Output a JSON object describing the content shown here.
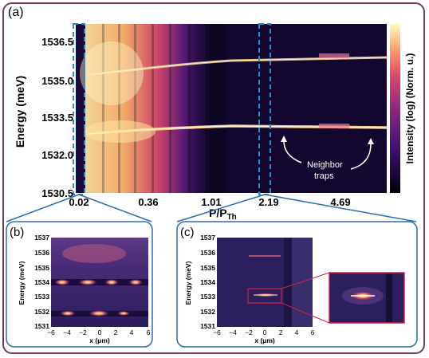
{
  "figure": {
    "panel_a": {
      "label": "(a)",
      "ylabel": "Energy (meV)",
      "xlabel_main": "P/P",
      "xlabel_sub": "Th",
      "yticks": [
        "1536.5",
        "1535.0",
        "1533.5",
        "1532.0",
        "1530.5"
      ],
      "xticks": [
        "0.02",
        "0.36",
        "1.01",
        "2.19",
        "4.69"
      ],
      "colorbar_label": "Intensity (log) (Norm. u.)",
      "annotation_lines": [
        "Neighbor",
        "traps"
      ]
    },
    "panel_b": {
      "label": "(b)",
      "ylabel": "Energy (meV)",
      "xlabel": "x (μm)",
      "yticks": [
        "1537",
        "1536",
        "1535",
        "1534",
        "1533",
        "1532",
        "1531"
      ],
      "xticks": [
        "−6",
        "−4",
        "−2",
        "0",
        "2",
        "4",
        "6"
      ]
    },
    "panel_c": {
      "label": "(c)",
      "ylabel": "Energy (meV)",
      "xlabel": "x (μm)",
      "yticks": [
        "1537",
        "1536",
        "1535",
        "1534",
        "1533",
        "1532",
        "1531"
      ],
      "xticks": [
        "−6",
        "−4",
        "−2",
        "0",
        "2",
        "4",
        "6"
      ]
    },
    "colors": {
      "frame": "#6b3a6b",
      "connector": "#2b6cb0",
      "dashed_box": "#1f8fd1",
      "zoom_box": "#d0204a"
    }
  }
}
